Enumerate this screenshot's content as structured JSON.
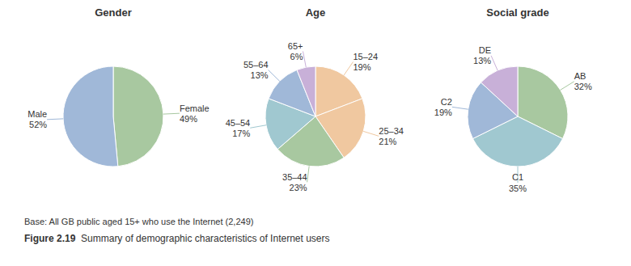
{
  "chart_data": [
    {
      "type": "pie",
      "title": "Gender",
      "categories": [
        "Female",
        "Male"
      ],
      "values": [
        49,
        52
      ],
      "value_labels": [
        "49%",
        "52%"
      ],
      "colors": [
        "#a8c8a0",
        "#a0b8d8"
      ],
      "annotations": [
        "Base: All GB public aged 15+ who use the Internet (2,249)",
        "Figure 2.19  Summary of demographic characteristics of Internet users"
      ]
    },
    {
      "type": "pie",
      "title": "Age",
      "categories": [
        "15–24",
        "25–34",
        "35–44",
        "45–54",
        "55–64",
        "65+"
      ],
      "values": [
        19,
        21,
        23,
        17,
        13,
        6
      ],
      "value_labels": [
        "19%",
        "21%",
        "23%",
        "17%",
        "13%",
        "6%"
      ],
      "colors": [
        "#f0c8a0",
        "#f0c8a0",
        "#a8c8a0",
        "#a0c8d0",
        "#a0b8d8",
        "#c8b0d8"
      ]
    },
    {
      "type": "pie",
      "title": "Social grade",
      "categories": [
        "AB",
        "C1",
        "C2",
        "DE"
      ],
      "values": [
        32,
        35,
        19,
        13
      ],
      "value_labels": [
        "32%",
        "35%",
        "19%",
        "13%"
      ],
      "colors": [
        "#a8c8a0",
        "#a0c8d0",
        "#a0b8d8",
        "#c8b0d8"
      ]
    }
  ]
}
